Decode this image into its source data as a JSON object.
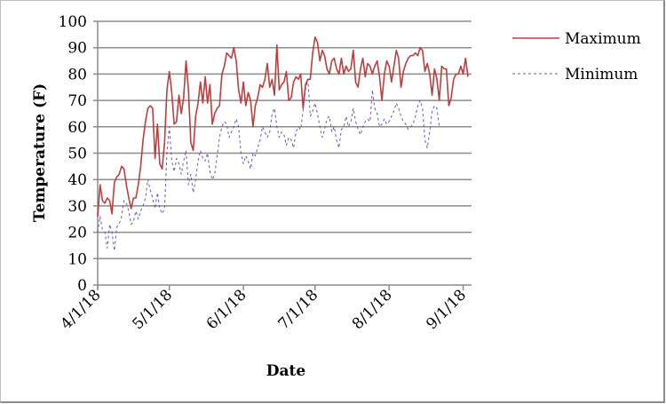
{
  "chart_data": {
    "type": "line",
    "title": "",
    "xlabel": "Date",
    "ylabel": "Temperature (F)",
    "ylim": [
      0,
      100
    ],
    "yticks": [
      0,
      10,
      20,
      30,
      40,
      50,
      60,
      70,
      80,
      90,
      100
    ],
    "xticks": [
      "4/1/18",
      "5/1/18",
      "6/1/18",
      "7/1/18",
      "8/1/18",
      "9/1/18"
    ],
    "xtick_days": [
      0,
      30,
      61,
      91,
      122,
      153
    ],
    "x_range_days": [
      0,
      157
    ],
    "grid": "horizontal",
    "legend_position": "right",
    "x_unit": "days since 4/1/18",
    "series": [
      {
        "name": "Maximum",
        "color": "#b84040",
        "style": "solid",
        "points": [
          [
            0,
            26
          ],
          [
            1,
            38
          ],
          [
            2,
            32
          ],
          [
            3,
            31
          ],
          [
            4,
            33
          ],
          [
            5,
            32
          ],
          [
            6,
            27
          ],
          [
            7,
            39
          ],
          [
            8,
            41
          ],
          [
            9,
            42
          ],
          [
            10,
            45
          ],
          [
            11,
            44
          ],
          [
            12,
            38
          ],
          [
            13,
            33
          ],
          [
            14,
            29
          ],
          [
            15,
            33
          ],
          [
            16,
            33
          ],
          [
            17,
            38
          ],
          [
            18,
            45
          ],
          [
            19,
            55
          ],
          [
            20,
            62
          ],
          [
            21,
            67
          ],
          [
            22,
            68
          ],
          [
            23,
            67
          ],
          [
            24,
            48
          ],
          [
            25,
            61
          ],
          [
            26,
            46
          ],
          [
            27,
            44
          ],
          [
            28,
            54
          ],
          [
            29,
            74
          ],
          [
            30,
            81
          ],
          [
            31,
            73
          ],
          [
            32,
            61
          ],
          [
            33,
            62
          ],
          [
            34,
            72
          ],
          [
            35,
            65
          ],
          [
            36,
            71
          ],
          [
            37,
            85
          ],
          [
            38,
            74
          ],
          [
            39,
            54
          ],
          [
            40,
            51
          ],
          [
            41,
            64
          ],
          [
            42,
            69
          ],
          [
            43,
            77
          ],
          [
            44,
            69
          ],
          [
            45,
            79
          ],
          [
            46,
            69
          ],
          [
            47,
            76
          ],
          [
            48,
            61
          ],
          [
            49,
            65
          ],
          [
            50,
            67
          ],
          [
            51,
            68
          ],
          [
            52,
            80
          ],
          [
            53,
            83
          ],
          [
            54,
            88
          ],
          [
            55,
            87
          ],
          [
            56,
            86
          ],
          [
            57,
            90
          ],
          [
            58,
            85
          ],
          [
            59,
            74
          ],
          [
            60,
            69
          ],
          [
            61,
            77
          ],
          [
            62,
            68
          ],
          [
            63,
            73
          ],
          [
            64,
            70
          ],
          [
            65,
            60
          ],
          [
            66,
            68
          ],
          [
            67,
            71
          ],
          [
            68,
            76
          ],
          [
            69,
            75
          ],
          [
            70,
            78
          ],
          [
            71,
            84
          ],
          [
            72,
            75
          ],
          [
            73,
            78
          ],
          [
            74,
            72
          ],
          [
            75,
            91
          ],
          [
            76,
            74
          ],
          [
            77,
            76
          ],
          [
            78,
            77
          ],
          [
            79,
            81
          ],
          [
            80,
            70
          ],
          [
            81,
            71
          ],
          [
            82,
            77
          ],
          [
            83,
            79
          ],
          [
            84,
            78
          ],
          [
            85,
            80
          ],
          [
            86,
            67
          ],
          [
            87,
            76
          ],
          [
            88,
            78
          ],
          [
            89,
            78
          ],
          [
            90,
            88
          ],
          [
            91,
            94
          ],
          [
            92,
            92
          ],
          [
            93,
            85
          ],
          [
            94,
            89
          ],
          [
            95,
            87
          ],
          [
            96,
            82
          ],
          [
            97,
            80
          ],
          [
            98,
            85
          ],
          [
            99,
            86
          ],
          [
            100,
            82
          ],
          [
            101,
            80
          ],
          [
            102,
            86
          ],
          [
            103,
            80
          ],
          [
            104,
            83
          ],
          [
            105,
            81
          ],
          [
            106,
            82
          ],
          [
            107,
            89
          ],
          [
            108,
            77
          ],
          [
            109,
            75
          ],
          [
            110,
            82
          ],
          [
            111,
            86
          ],
          [
            112,
            79
          ],
          [
            113,
            84
          ],
          [
            114,
            83
          ],
          [
            115,
            80
          ],
          [
            116,
            83
          ],
          [
            117,
            85
          ],
          [
            118,
            79
          ],
          [
            119,
            70
          ],
          [
            120,
            80
          ],
          [
            121,
            85
          ],
          [
            122,
            83
          ],
          [
            123,
            77
          ],
          [
            124,
            83
          ],
          [
            125,
            89
          ],
          [
            126,
            86
          ],
          [
            127,
            75
          ],
          [
            128,
            81
          ],
          [
            129,
            84
          ],
          [
            130,
            86
          ],
          [
            131,
            87
          ],
          [
            132,
            87
          ],
          [
            133,
            88
          ],
          [
            134,
            87
          ],
          [
            135,
            90
          ],
          [
            136,
            89
          ],
          [
            137,
            81
          ],
          [
            138,
            84
          ],
          [
            139,
            80
          ],
          [
            140,
            72
          ],
          [
            141,
            82
          ],
          [
            142,
            78
          ],
          [
            143,
            70
          ],
          [
            144,
            83
          ],
          [
            145,
            82
          ],
          [
            146,
            82
          ],
          [
            147,
            68
          ],
          [
            148,
            71
          ],
          [
            149,
            78
          ],
          [
            150,
            80
          ],
          [
            151,
            80
          ],
          [
            152,
            83
          ],
          [
            153,
            80
          ],
          [
            154,
            86
          ],
          [
            155,
            79
          ]
        ]
      },
      {
        "name": "Minimum",
        "color": "#6a5aa8",
        "style": "dashed",
        "points": [
          [
            0,
            20
          ],
          [
            1,
            26
          ],
          [
            2,
            21
          ],
          [
            3,
            20
          ],
          [
            4,
            14
          ],
          [
            5,
            23
          ],
          [
            6,
            20
          ],
          [
            7,
            13
          ],
          [
            8,
            22
          ],
          [
            9,
            23
          ],
          [
            10,
            26
          ],
          [
            11,
            32
          ],
          [
            12,
            31
          ],
          [
            13,
            28
          ],
          [
            14,
            23
          ],
          [
            15,
            24
          ],
          [
            16,
            28
          ],
          [
            17,
            25
          ],
          [
            18,
            28
          ],
          [
            19,
            30
          ],
          [
            20,
            33
          ],
          [
            21,
            40
          ],
          [
            22,
            36
          ],
          [
            23,
            33
          ],
          [
            24,
            29
          ],
          [
            25,
            35
          ],
          [
            26,
            29
          ],
          [
            27,
            27
          ],
          [
            28,
            29
          ],
          [
            29,
            50
          ],
          [
            30,
            60
          ],
          [
            31,
            47
          ],
          [
            32,
            43
          ],
          [
            33,
            48
          ],
          [
            34,
            46
          ],
          [
            35,
            42
          ],
          [
            36,
            47
          ],
          [
            37,
            51
          ],
          [
            38,
            38
          ],
          [
            39,
            42
          ],
          [
            40,
            35
          ],
          [
            41,
            40
          ],
          [
            42,
            47
          ],
          [
            43,
            51
          ],
          [
            44,
            48
          ],
          [
            45,
            47
          ],
          [
            46,
            50
          ],
          [
            47,
            43
          ],
          [
            48,
            40
          ],
          [
            49,
            42
          ],
          [
            50,
            49
          ],
          [
            51,
            56
          ],
          [
            52,
            60
          ],
          [
            53,
            62
          ],
          [
            54,
            61
          ],
          [
            55,
            56
          ],
          [
            56,
            58
          ],
          [
            57,
            60
          ],
          [
            58,
            63
          ],
          [
            59,
            60
          ],
          [
            60,
            50
          ],
          [
            61,
            46
          ],
          [
            62,
            49
          ],
          [
            63,
            47
          ],
          [
            64,
            44
          ],
          [
            65,
            50
          ],
          [
            66,
            49
          ],
          [
            67,
            52
          ],
          [
            68,
            55
          ],
          [
            69,
            60
          ],
          [
            70,
            58
          ],
          [
            71,
            56
          ],
          [
            72,
            58
          ],
          [
            73,
            65
          ],
          [
            74,
            67
          ],
          [
            75,
            60
          ],
          [
            76,
            56
          ],
          [
            77,
            58
          ],
          [
            78,
            57
          ],
          [
            79,
            53
          ],
          [
            80,
            56
          ],
          [
            81,
            55
          ],
          [
            82,
            52
          ],
          [
            83,
            58
          ],
          [
            84,
            60
          ],
          [
            85,
            59
          ],
          [
            86,
            66
          ],
          [
            87,
            74
          ],
          [
            88,
            78
          ],
          [
            89,
            64
          ],
          [
            90,
            66
          ],
          [
            91,
            69
          ],
          [
            92,
            65
          ],
          [
            93,
            60
          ],
          [
            94,
            56
          ],
          [
            95,
            59
          ],
          [
            96,
            63
          ],
          [
            97,
            64
          ],
          [
            98,
            58
          ],
          [
            99,
            60
          ],
          [
            100,
            55
          ],
          [
            101,
            52
          ],
          [
            102,
            59
          ],
          [
            103,
            60
          ],
          [
            104,
            64
          ],
          [
            105,
            60
          ],
          [
            106,
            62
          ],
          [
            107,
            67
          ],
          [
            108,
            62
          ],
          [
            109,
            59
          ],
          [
            110,
            57
          ],
          [
            111,
            60
          ],
          [
            112,
            62
          ],
          [
            113,
            63
          ],
          [
            114,
            62
          ],
          [
            115,
            74
          ],
          [
            116,
            67
          ],
          [
            117,
            65
          ],
          [
            118,
            60
          ],
          [
            119,
            61
          ],
          [
            120,
            63
          ],
          [
            121,
            61
          ],
          [
            122,
            62
          ],
          [
            123,
            64
          ],
          [
            124,
            66
          ],
          [
            125,
            69
          ],
          [
            126,
            67
          ],
          [
            127,
            64
          ],
          [
            128,
            62
          ],
          [
            129,
            61
          ],
          [
            130,
            59
          ],
          [
            131,
            60
          ],
          [
            132,
            61
          ],
          [
            133,
            64
          ],
          [
            134,
            68
          ],
          [
            135,
            70
          ],
          [
            136,
            67
          ],
          [
            137,
            55
          ],
          [
            138,
            52
          ],
          [
            139,
            58
          ],
          [
            140,
            66
          ],
          [
            141,
            68
          ],
          [
            142,
            67
          ],
          [
            143,
            60
          ]
        ]
      }
    ]
  },
  "legend": {
    "items": [
      {
        "label": "Maximum"
      },
      {
        "label": "Minimum"
      }
    ]
  },
  "axes": {
    "y_title": "Temperature (F)",
    "x_title": "Date"
  },
  "colors": {
    "grid": "#8c8c8c",
    "axis": "#8c8c8c",
    "frame": "#8c8c8c"
  }
}
